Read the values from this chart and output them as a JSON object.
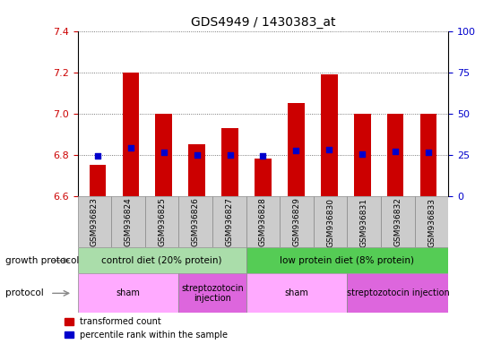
{
  "title": "GDS4949 / 1430383_at",
  "samples": [
    "GSM936823",
    "GSM936824",
    "GSM936825",
    "GSM936826",
    "GSM936827",
    "GSM936828",
    "GSM936829",
    "GSM936830",
    "GSM936831",
    "GSM936832",
    "GSM936833"
  ],
  "transformed_count": [
    6.75,
    7.2,
    7.0,
    6.85,
    6.93,
    6.78,
    7.05,
    7.19,
    7.0,
    7.0,
    7.0
  ],
  "percentile_rank": [
    6.795,
    6.835,
    6.81,
    6.8,
    6.8,
    6.795,
    6.82,
    6.825,
    6.805,
    6.815,
    6.81
  ],
  "ylim_left": [
    6.6,
    7.4
  ],
  "ylim_right": [
    0,
    100
  ],
  "yticks_left": [
    6.6,
    6.8,
    7.0,
    7.2,
    7.4
  ],
  "yticks_right": [
    0,
    25,
    50,
    75,
    100
  ],
  "bar_color": "#cc0000",
  "dot_color": "#0000cc",
  "bar_bottom": 6.6,
  "growth_protocol_groups": [
    {
      "label": "control diet (20% protein)",
      "start": 0,
      "end": 5,
      "color": "#aaddaa"
    },
    {
      "label": "low protein diet (8% protein)",
      "start": 5,
      "end": 11,
      "color": "#55cc55"
    }
  ],
  "protocol_groups": [
    {
      "label": "sham",
      "start": 0,
      "end": 3,
      "color": "#ffaaff"
    },
    {
      "label": "streptozotocin\ninjection",
      "start": 3,
      "end": 5,
      "color": "#dd66dd"
    },
    {
      "label": "sham",
      "start": 5,
      "end": 8,
      "color": "#ffaaff"
    },
    {
      "label": "streptozotocin injection",
      "start": 8,
      "end": 11,
      "color": "#dd66dd"
    }
  ],
  "grid_color": "#555555",
  "bg_color": "#ffffff",
  "tick_label_color_left": "#cc0000",
  "tick_label_color_right": "#0000cc",
  "growth_protocol_label": "growth protocol",
  "protocol_label": "protocol",
  "legend_labels": [
    "transformed count",
    "percentile rank within the sample"
  ]
}
